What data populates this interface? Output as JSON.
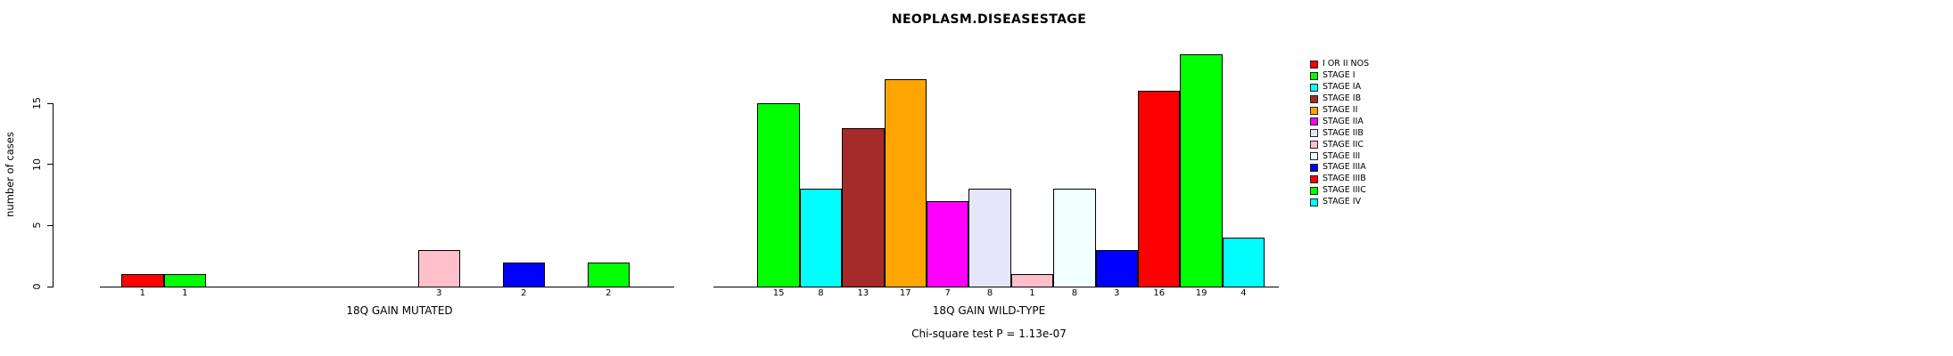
{
  "chart_data": {
    "type": "bar",
    "title": "NEOPLASM.DISEASESTAGE",
    "ylabel": "number of cases",
    "ylim": [
      0,
      15
    ],
    "yticks": [
      0,
      5,
      10,
      15
    ],
    "grid": false,
    "legend_position": "right",
    "categories": [
      "I OR II NOS",
      "STAGE I",
      "STAGE IA",
      "STAGE IB",
      "STAGE II",
      "STAGE IIA",
      "STAGE IIB",
      "STAGE IIC",
      "STAGE III",
      "STAGE IIIA",
      "STAGE IIIB",
      "STAGE IIIC",
      "STAGE IV"
    ],
    "category_colors": [
      "#FF0000",
      "#00FF00",
      "#00FFFF",
      "#A52A2A",
      "#FFA500",
      "#FF00FF",
      "#E6E6FA",
      "#FFC0CB",
      "#F0FFFF",
      "#0000FF",
      "#FF0000",
      "#00FF00",
      "#00FFFF"
    ],
    "panels": [
      {
        "label": "18Q GAIN MUTATED",
        "values": [
          1,
          1,
          0,
          0,
          0,
          0,
          0,
          3,
          0,
          2,
          0,
          2,
          0
        ]
      },
      {
        "label": "18Q GAIN WILD-TYPE",
        "values": [
          0,
          15,
          8,
          13,
          17,
          7,
          8,
          1,
          8,
          3,
          16,
          19,
          4
        ]
      }
    ],
    "bar_value_labels_shown": true,
    "annotation": "Chi-square test P = 1.13e-07"
  }
}
